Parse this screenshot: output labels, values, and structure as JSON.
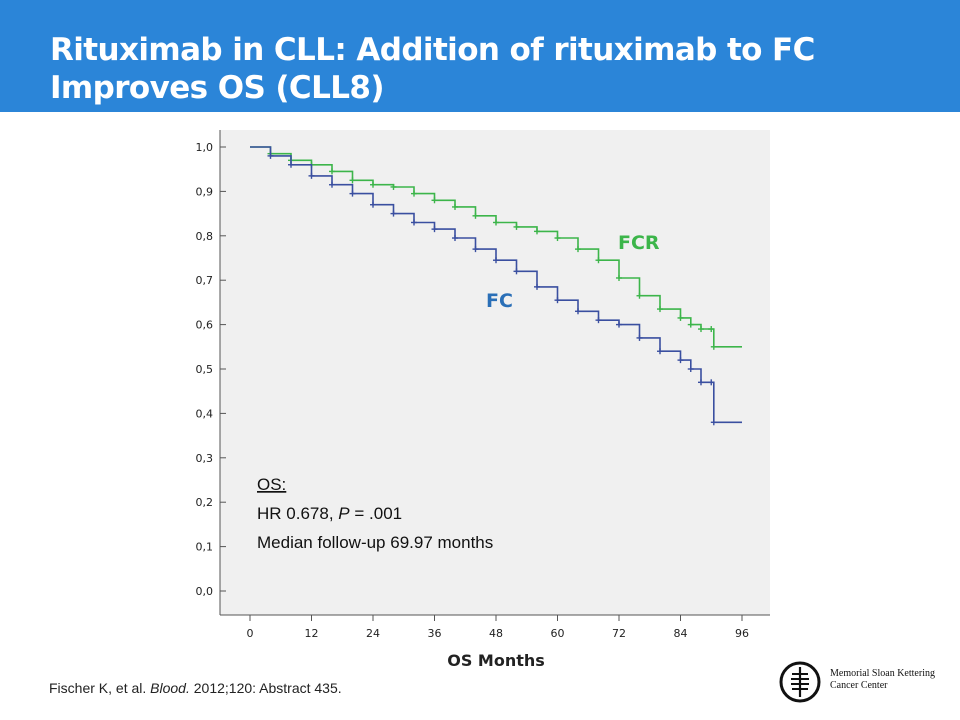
{
  "slide": {
    "title_line1": "Rituximab in CLL: Addition of rituximab to FC",
    "title_line2": "Improves OS (CLL8)",
    "footnote": {
      "authors": "Fischer K, et al.",
      "journal": "Blood.",
      "rest": "2012;120: Abstract 435."
    },
    "logo": {
      "line1": "Memorial Sloan Kettering",
      "line2": "Cancer Center",
      "icon": "msk-logo-icon"
    },
    "colors": {
      "title_bar": "#2b85d8",
      "fcr": "#3cb54a",
      "fc": "#3a4fa0"
    }
  },
  "chart_data": {
    "type": "line",
    "title": "",
    "xlabel": "OS Months",
    "ylabel": "",
    "xlim": [
      0,
      96
    ],
    "ylim": [
      0,
      1
    ],
    "x_ticks": [
      "0",
      "12",
      "24",
      "36",
      "48",
      "60",
      "72",
      "84",
      "96"
    ],
    "y_ticks": [
      "0,0",
      "0,1",
      "0,2",
      "0,3",
      "0,4",
      "0,5",
      "0,6",
      "0,7",
      "0,8",
      "0,9",
      "1,0"
    ],
    "grid": false,
    "series": [
      {
        "name": "FCR",
        "color": "#3cb54a",
        "points": [
          [
            0,
            1.0
          ],
          [
            4,
            0.985
          ],
          [
            8,
            0.97
          ],
          [
            12,
            0.96
          ],
          [
            16,
            0.945
          ],
          [
            20,
            0.925
          ],
          [
            24,
            0.915
          ],
          [
            28,
            0.91
          ],
          [
            32,
            0.895
          ],
          [
            36,
            0.88
          ],
          [
            40,
            0.865
          ],
          [
            44,
            0.845
          ],
          [
            48,
            0.83
          ],
          [
            52,
            0.82
          ],
          [
            56,
            0.81
          ],
          [
            60,
            0.795
          ],
          [
            64,
            0.77
          ],
          [
            68,
            0.745
          ],
          [
            72,
            0.705
          ],
          [
            76,
            0.665
          ],
          [
            80,
            0.635
          ],
          [
            84,
            0.615
          ],
          [
            86,
            0.6
          ],
          [
            88,
            0.59
          ],
          [
            90,
            0.59
          ],
          [
            90.5,
            0.55
          ],
          [
            96,
            0.55
          ]
        ]
      },
      {
        "name": "FC",
        "color": "#3a4fa0",
        "points": [
          [
            0,
            1.0
          ],
          [
            4,
            0.98
          ],
          [
            8,
            0.96
          ],
          [
            12,
            0.935
          ],
          [
            16,
            0.915
          ],
          [
            20,
            0.895
          ],
          [
            24,
            0.87
          ],
          [
            28,
            0.85
          ],
          [
            32,
            0.83
          ],
          [
            36,
            0.815
          ],
          [
            40,
            0.795
          ],
          [
            44,
            0.77
          ],
          [
            48,
            0.745
          ],
          [
            52,
            0.72
          ],
          [
            56,
            0.685
          ],
          [
            60,
            0.655
          ],
          [
            64,
            0.63
          ],
          [
            68,
            0.61
          ],
          [
            72,
            0.6
          ],
          [
            76,
            0.57
          ],
          [
            80,
            0.54
          ],
          [
            84,
            0.52
          ],
          [
            86,
            0.5
          ],
          [
            88,
            0.47
          ],
          [
            90,
            0.47
          ],
          [
            90.5,
            0.38
          ],
          [
            96,
            0.38
          ]
        ]
      }
    ],
    "annotations": {
      "os_label": "OS:",
      "hr_prefix": "HR 0.678,",
      "p_label": "P",
      "p_value": "= .001",
      "median": "Median follow-up 69.97 months"
    }
  }
}
